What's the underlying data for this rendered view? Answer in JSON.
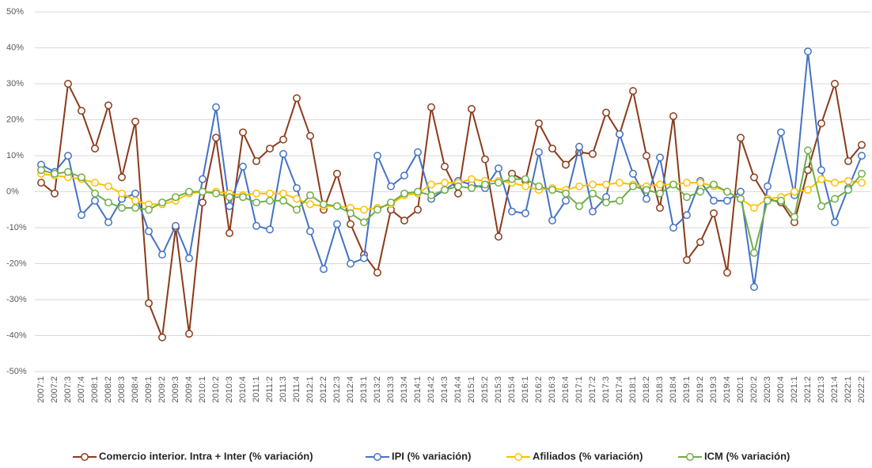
{
  "chart_data": {
    "type": "line",
    "categories": [
      "2007:1",
      "2007:2",
      "2007:3",
      "2007:4",
      "2008:1",
      "2008:2",
      "2008:3",
      "2008:4",
      "2009:1",
      "2009:2",
      "2009:3",
      "2009:4",
      "2010:1",
      "2010:2",
      "2010:3",
      "2010:4",
      "2011:1",
      "2011:2",
      "2011:3",
      "2011:4",
      "2012:1",
      "2012:2",
      "2012:3",
      "2012:4",
      "2013:1",
      "2013:2",
      "2013:3",
      "2013:4",
      "2014:1",
      "2014:2",
      "2014:3",
      "2014:4",
      "2015:1",
      "2015:2",
      "2015:3",
      "2015:4",
      "2016:1",
      "2016:2",
      "2016:3",
      "2016:4",
      "2017:1",
      "2017:2",
      "2017:3",
      "2017:4",
      "2018:1",
      "2018:2",
      "2018:3",
      "2018:4",
      "2019:1",
      "2019:2",
      "2019:3",
      "2019:4",
      "2020:1",
      "2020:2",
      "2020:3",
      "2020:4",
      "2021:1",
      "2021:2",
      "2021:3",
      "2021:4",
      "2022:1",
      "2022:2"
    ],
    "series": [
      {
        "name": "Comercio interior. Intra + Inter (% variación)",
        "color": "#8b3a1a",
        "values": [
          2.5,
          -0.5,
          30,
          22.5,
          12,
          24,
          4,
          19.5,
          -31,
          -40.5,
          -10,
          -39.5,
          -3,
          15,
          -11.5,
          16.5,
          8.5,
          12,
          14.5,
          26,
          15.5,
          -5,
          5,
          -9,
          -17.5,
          -22.5,
          -5,
          -8,
          -5,
          23.5,
          7,
          -0.5,
          23,
          9,
          -12.5,
          5,
          3,
          19,
          12,
          7.5,
          11,
          10.5,
          22,
          16,
          28,
          10,
          -4.5,
          21,
          -19,
          -14,
          -6,
          -22.5,
          15,
          4,
          -2,
          -3,
          -8.5,
          6,
          19,
          30,
          8.5,
          13
        ]
      },
      {
        "name": "IPI (% variación)",
        "color": "#4472c4",
        "values": [
          7.5,
          5.5,
          10,
          -6.5,
          -2.5,
          -8.5,
          -2,
          -0.5,
          -11,
          -17.5,
          -9.5,
          -18.5,
          3.5,
          23.5,
          -4,
          7,
          -9.5,
          -10.5,
          10.5,
          1,
          -11,
          -21.5,
          -9,
          -20,
          -18.5,
          10,
          1.5,
          4.5,
          11,
          -2,
          0.5,
          3,
          2,
          1,
          6.5,
          -5.5,
          -6,
          11,
          -8,
          -2.5,
          12.5,
          -5.5,
          -1.5,
          16,
          5,
          -2,
          9.5,
          -10,
          -6.5,
          3,
          -2.5,
          -2.5,
          0,
          -26.5,
          1.5,
          16.5,
          -1,
          39,
          6,
          -8.5,
          1,
          10
        ]
      },
      {
        "name": "Afiliados (% variación)",
        "color": "#ffc000",
        "values": [
          5,
          4.5,
          4,
          3.5,
          2.5,
          1.5,
          -0.5,
          -2.5,
          -3.5,
          -3.5,
          -2.5,
          -0.5,
          0,
          0,
          -0.5,
          -1,
          -0.5,
          -0.5,
          -0.5,
          -2,
          -3.5,
          -4,
          -4,
          -4.5,
          -5,
          -4.5,
          -3.5,
          -1,
          -0.5,
          2,
          2.5,
          2.5,
          3.5,
          3,
          3,
          2.5,
          1.5,
          0.5,
          1,
          0.5,
          1.5,
          2,
          2,
          2.5,
          2,
          1.5,
          2,
          2,
          2.5,
          2.5,
          1.5,
          0,
          -2,
          -4.5,
          -2,
          -1.5,
          0,
          0.5,
          3.5,
          2.5,
          3,
          2.5
        ]
      },
      {
        "name": "ICM (% variación)",
        "color": "#70ad47",
        "values": [
          6,
          5,
          5.5,
          4,
          -0.5,
          -3,
          -4.5,
          -4.5,
          -5,
          -3,
          -1.5,
          0,
          0,
          -0.5,
          -1.5,
          -1.5,
          -3,
          -2.5,
          -2.5,
          -5,
          -1,
          -3.5,
          -4,
          -6,
          -8.5,
          -5,
          -3,
          -0.5,
          0,
          -1,
          0.5,
          1.5,
          1,
          2,
          2.5,
          3.5,
          3.5,
          1.5,
          0.5,
          -0.5,
          -4,
          -0.5,
          -3,
          -2.5,
          1.5,
          0.5,
          -0.5,
          2,
          -1.5,
          0,
          2,
          0,
          -2,
          -17,
          -2.5,
          -2.5,
          -7,
          11.5,
          -4,
          -2,
          0.5,
          5
        ]
      }
    ],
    "ylim": [
      -50,
      50
    ],
    "yticks": [
      {
        "value": -50,
        "label": "-50%"
      },
      {
        "value": -40,
        "label": "-40%"
      },
      {
        "value": -30,
        "label": "-30%"
      },
      {
        "value": -20,
        "label": "-20%"
      },
      {
        "value": -10,
        "label": "-10%"
      },
      {
        "value": 0,
        "label": "0%"
      },
      {
        "value": 10,
        "label": "10%"
      },
      {
        "value": 20,
        "label": "20%"
      },
      {
        "value": 30,
        "label": "30%"
      },
      {
        "value": 40,
        "label": "40%"
      },
      {
        "value": 50,
        "label": "50%"
      }
    ],
    "grid": true,
    "legend": "bottom"
  }
}
